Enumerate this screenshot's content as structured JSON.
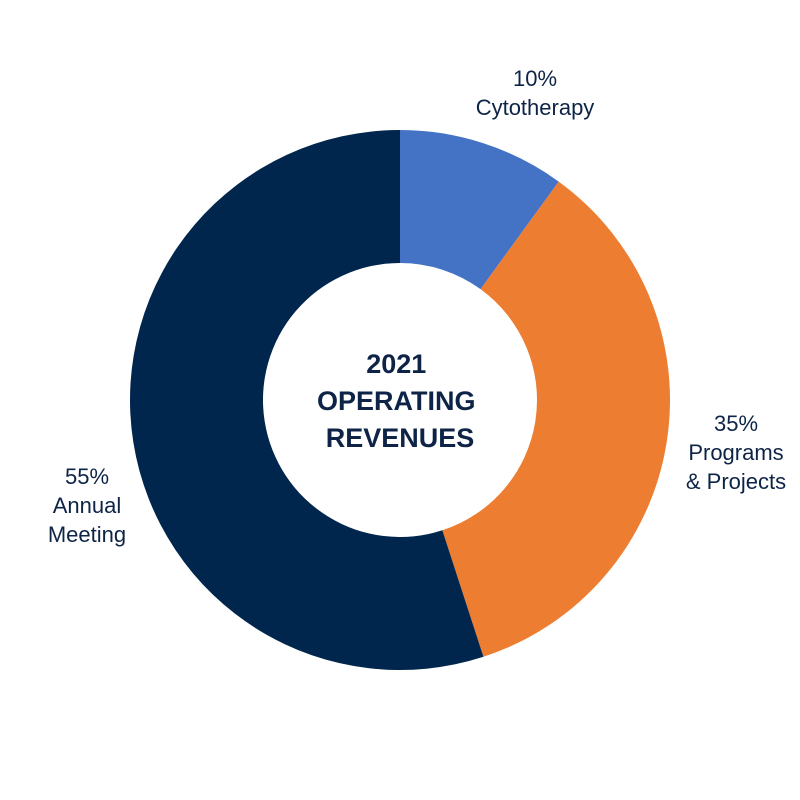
{
  "chart_data": {
    "type": "pie",
    "title": [
      "2021",
      "OPERATING",
      "REVENUES"
    ],
    "slices": [
      {
        "label": [
          "10%",
          "Cytotherapy"
        ],
        "value": 10,
        "color": "#4472c4"
      },
      {
        "label": [
          "35%",
          "Programs",
          "& Projects"
        ],
        "value": 35,
        "color": "#ed7d31"
      },
      {
        "label": [
          "55%",
          "Annual",
          "Meeting"
        ],
        "value": 55,
        "color": "#00264d"
      }
    ],
    "donut": true,
    "start_angle_deg": 0,
    "direction": "clockwise"
  }
}
